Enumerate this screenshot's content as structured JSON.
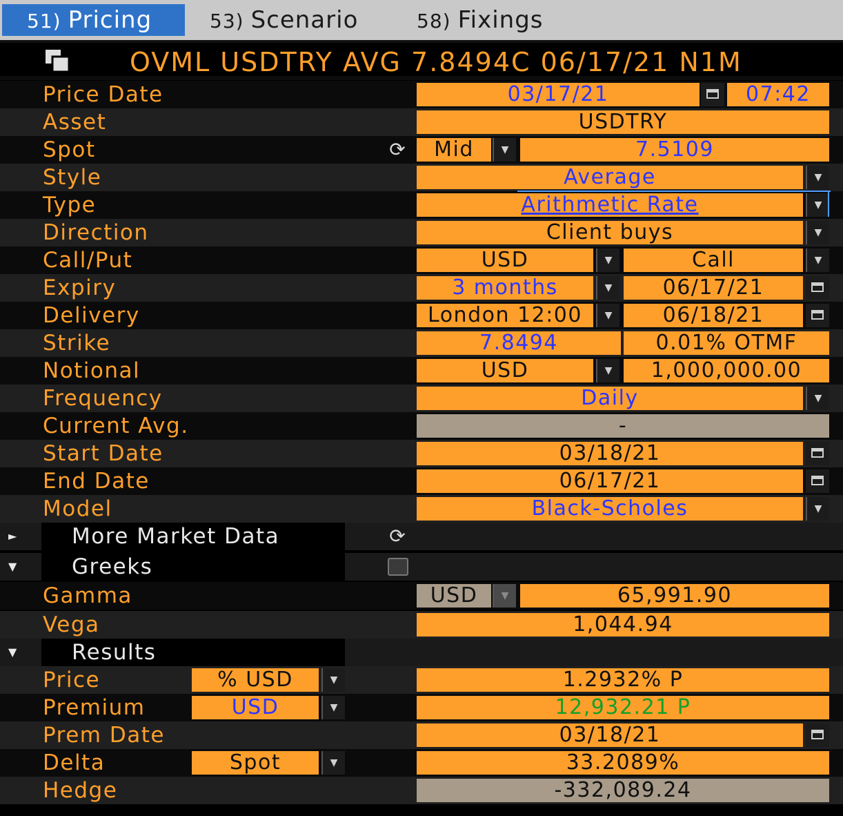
{
  "tabs": [
    {
      "num": "51)",
      "label": "Pricing"
    },
    {
      "num": "53)",
      "label": "Scenario"
    },
    {
      "num": "58)",
      "label": "Fixings"
    }
  ],
  "title": "OVML USDTRY AVG 7.8494C 06/17/21 N1M",
  "fields": {
    "price_date": {
      "label": "Price Date",
      "date": "03/17/21",
      "time": "07:42"
    },
    "asset": {
      "label": "Asset",
      "value": "USDTRY"
    },
    "spot": {
      "label": "Spot",
      "side": "Mid",
      "value": "7.5109"
    },
    "style": {
      "label": "Style",
      "value": "Average"
    },
    "type": {
      "label": "Type",
      "value": "Arithmetic Rate"
    },
    "direction": {
      "label": "Direction",
      "value": "Client buys"
    },
    "call_put": {
      "label": "Call/Put",
      "currency": "USD",
      "value": "Call"
    },
    "expiry": {
      "label": "Expiry",
      "tenor": "3 months",
      "date": "06/17/21"
    },
    "delivery": {
      "label": "Delivery",
      "cut": "London 12:00",
      "date": "06/18/21"
    },
    "strike": {
      "label": "Strike",
      "value": "7.8494",
      "moneyness": "0.01% OTMF"
    },
    "notional": {
      "label": "Notional",
      "currency": "USD",
      "value": "1,000,000.00"
    },
    "frequency": {
      "label": "Frequency",
      "value": "Daily"
    },
    "current_avg": {
      "label": "Current Avg.",
      "value": "-"
    },
    "start_date": {
      "label": "Start Date",
      "value": "03/18/21"
    },
    "end_date": {
      "label": "End Date",
      "value": "06/17/21"
    },
    "model": {
      "label": "Model",
      "value": "Black-Scholes"
    }
  },
  "sections": {
    "more_market_data": "More Market Data",
    "greeks": "Greeks",
    "results": "Results"
  },
  "greeks": {
    "gamma": {
      "label": "Gamma",
      "currency": "USD",
      "value": "65,991.90"
    },
    "vega": {
      "label": "Vega",
      "value": "1,044.94"
    }
  },
  "results": {
    "price": {
      "label": "Price",
      "unit": "% USD",
      "value": "1.2932% P"
    },
    "premium": {
      "label": "Premium",
      "unit": "USD",
      "value": "12,932.21 P"
    },
    "prem_date": {
      "label": "Prem Date",
      "value": "03/18/21"
    },
    "delta": {
      "label": "Delta",
      "unit": "Spot",
      "value": "33.2089%"
    },
    "hedge": {
      "label": "Hedge",
      "value": "-332,089.24"
    }
  },
  "colors": {
    "accent": "#ff9f2b",
    "active_tab": "#2f73c8",
    "link_blue": "#2e36ff",
    "positive_green": "#14a02a",
    "readonly_gray": "#a89b89"
  }
}
